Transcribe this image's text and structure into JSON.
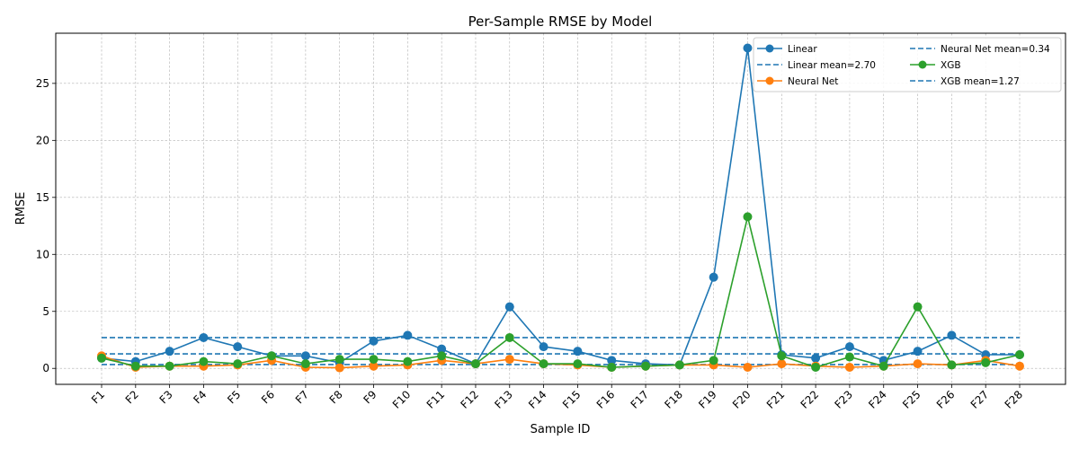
{
  "chart_data": {
    "type": "line",
    "title": "Per-Sample RMSE by Model",
    "xlabel": "Sample ID",
    "ylabel": "RMSE",
    "ylim": [
      -1.4,
      29.4
    ],
    "yticks": [
      0,
      5,
      10,
      15,
      20,
      25
    ],
    "grid": true,
    "legend_position": "top-right",
    "categories": [
      "F1",
      "F2",
      "F3",
      "F4",
      "F5",
      "F6",
      "F7",
      "F8",
      "F9",
      "F10",
      "F11",
      "F12",
      "F13",
      "F14",
      "F15",
      "F16",
      "F17",
      "F18",
      "F19",
      "F20",
      "F21",
      "F22",
      "F23",
      "F24",
      "F25",
      "F26",
      "F27",
      "F28"
    ],
    "series": [
      {
        "name": "Linear",
        "color": "#1f77b4",
        "values": [
          0.9,
          0.6,
          1.5,
          2.7,
          1.9,
          1.1,
          1.1,
          0.5,
          2.4,
          2.9,
          1.7,
          0.4,
          5.4,
          1.9,
          1.5,
          0.7,
          0.4,
          0.3,
          8.0,
          28.1,
          1.2,
          0.9,
          1.9,
          0.7,
          1.5,
          2.9,
          1.2,
          1.2
        ]
      },
      {
        "name": "Neural Net",
        "color": "#ff7f0e",
        "values": [
          1.1,
          0.1,
          0.2,
          0.2,
          0.3,
          0.7,
          0.1,
          0.05,
          0.2,
          0.3,
          0.7,
          0.4,
          0.8,
          0.4,
          0.3,
          0.1,
          0.2,
          0.3,
          0.3,
          0.1,
          0.4,
          0.2,
          0.1,
          0.2,
          0.4,
          0.3,
          0.7,
          0.2
        ]
      },
      {
        "name": "XGB",
        "color": "#2ca02c",
        "values": [
          0.9,
          0.2,
          0.2,
          0.6,
          0.4,
          1.1,
          0.4,
          0.8,
          0.8,
          0.6,
          1.1,
          0.4,
          2.7,
          0.4,
          0.4,
          0.1,
          0.2,
          0.3,
          0.7,
          13.3,
          1.1,
          0.1,
          1.0,
          0.2,
          5.4,
          0.3,
          0.5,
          1.2
        ]
      }
    ],
    "mean_lines": [
      {
        "name": "Linear mean=2.70",
        "value": 2.7,
        "color": "#1f77b4"
      },
      {
        "name": "Neural Net mean=0.34",
        "value": 0.34,
        "color": "#1f77b4"
      },
      {
        "name": "XGB mean=1.27",
        "value": 1.27,
        "color": "#1f77b4"
      }
    ],
    "legend_entries": [
      {
        "label": "Linear",
        "kind": "line-marker",
        "color": "#1f77b4"
      },
      {
        "label": "Linear mean=2.70",
        "kind": "dashed",
        "color": "#1f77b4"
      },
      {
        "label": "Neural Net",
        "kind": "line-marker",
        "color": "#ff7f0e"
      },
      {
        "label": "Neural Net mean=0.34",
        "kind": "dashed",
        "color": "#1f77b4"
      },
      {
        "label": "XGB",
        "kind": "line-marker",
        "color": "#2ca02c"
      },
      {
        "label": "XGB mean=1.27",
        "kind": "dashed",
        "color": "#1f77b4"
      }
    ]
  }
}
